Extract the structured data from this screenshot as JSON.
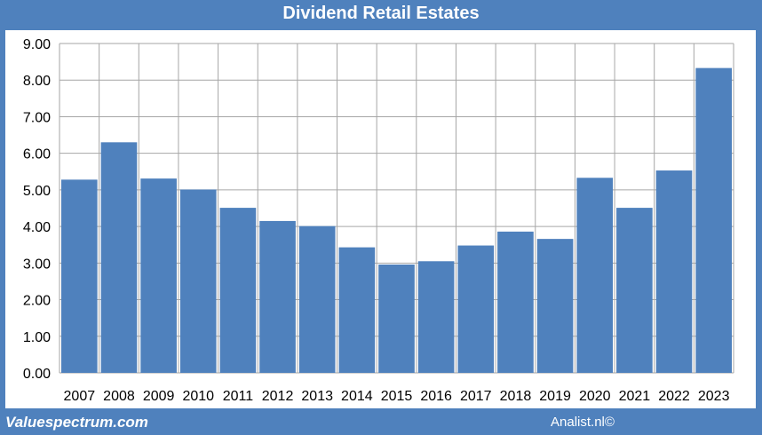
{
  "header": {
    "title": "Dividend Retail Estates"
  },
  "footer": {
    "left": "Valuespectrum.com",
    "right": "Analist.nl©"
  },
  "colors": {
    "bar": "#4f81bd",
    "frame": "#4f81bd",
    "grid": "#a6a6a6"
  },
  "chart_data": {
    "type": "bar",
    "title": "Dividend Retail Estates",
    "xlabel": "",
    "ylabel": "",
    "ylim": [
      0,
      9
    ],
    "ytick_step": 1,
    "ytick_labels": [
      "0.00",
      "1.00",
      "2.00",
      "3.00",
      "4.00",
      "5.00",
      "6.00",
      "7.00",
      "8.00",
      "9.00"
    ],
    "grid": true,
    "categories": [
      "2007",
      "2008",
      "2009",
      "2010",
      "2011",
      "2012",
      "2013",
      "2014",
      "2015",
      "2016",
      "2017",
      "2018",
      "2019",
      "2020",
      "2021",
      "2022",
      "2023"
    ],
    "values": [
      5.28,
      6.3,
      5.31,
      5.01,
      4.51,
      4.15,
      4.01,
      3.43,
      2.96,
      3.05,
      3.48,
      3.86,
      3.66,
      5.33,
      4.51,
      5.53,
      8.33
    ]
  }
}
